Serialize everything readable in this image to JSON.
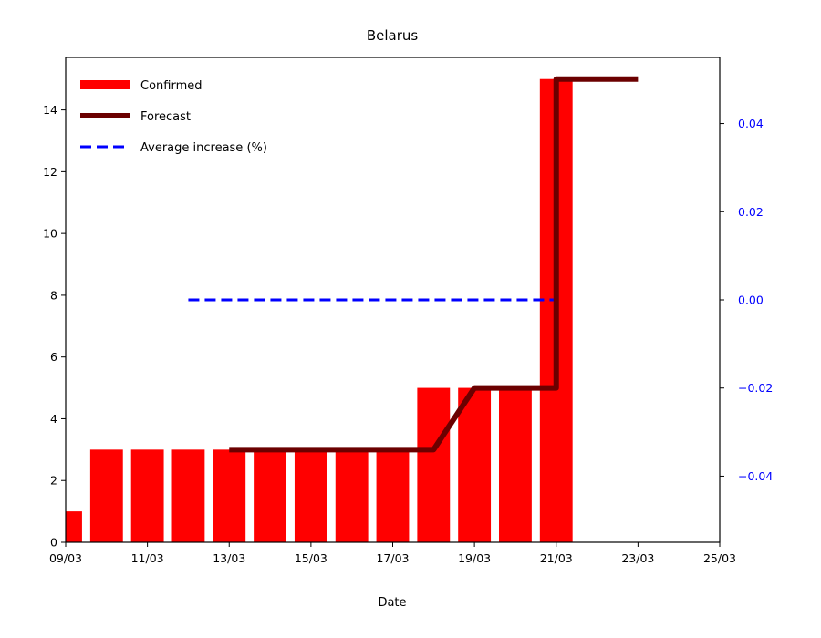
{
  "chart_data": {
    "type": "bar",
    "title": "Belarus",
    "xlabel": "Date",
    "ylabel": "",
    "ylabel_right": "",
    "x_ticks": [
      "09/03",
      "11/03",
      "13/03",
      "15/03",
      "17/03",
      "19/03",
      "21/03",
      "23/03",
      "25/03"
    ],
    "xlim": [
      "09/03",
      "25/03"
    ],
    "ylim": [
      0,
      15.7
    ],
    "y_ticks": [
      0,
      2,
      4,
      6,
      8,
      10,
      12,
      14
    ],
    "ylim_right": [
      -0.055,
      0.055
    ],
    "y_ticks_right": [
      "−0.04",
      "−0.02",
      "0.00",
      "0.02",
      "0.04"
    ],
    "y_tick_values_right": [
      -0.04,
      -0.02,
      0.0,
      0.02,
      0.04
    ],
    "legend_position": "top-left",
    "grid": false,
    "series": [
      {
        "name": "Confirmed",
        "kind": "bar",
        "color": "#ff0000",
        "dates": [
          "09/03",
          "10/03",
          "11/03",
          "12/03",
          "13/03",
          "14/03",
          "15/03",
          "16/03",
          "17/03",
          "18/03",
          "19/03",
          "20/03",
          "21/03"
        ],
        "values": [
          1,
          3,
          3,
          3,
          3,
          3,
          3,
          3,
          3,
          5,
          5,
          5,
          15
        ]
      },
      {
        "name": "Forecast",
        "kind": "line",
        "color": "#6b0000",
        "points": [
          {
            "x": "13/03",
            "y": 3
          },
          {
            "x": "18/03",
            "y": 3
          },
          {
            "x": "19/03",
            "y": 5
          },
          {
            "x": "21/03",
            "y": 5
          },
          {
            "x": "21/03",
            "y": 15
          },
          {
            "x": "23/03",
            "y": 15
          }
        ]
      },
      {
        "name": "Average increase (%)",
        "kind": "dashed-line",
        "axis": "right",
        "color": "#0000ff",
        "points": [
          {
            "x": "12/03",
            "y": 0.0
          },
          {
            "x": "21/03",
            "y": 0.0
          }
        ]
      }
    ]
  }
}
